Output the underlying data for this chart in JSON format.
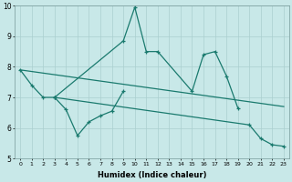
{
  "color": "#1a7a6e",
  "bg_color": "#c8e8e8",
  "grid_color": "#aacfcf",
  "xlabel": "Humidex (Indice chaleur)",
  "ylim": [
    5,
    10
  ],
  "xlim": [
    -0.5,
    23.5
  ],
  "line_upper": {
    "x": [
      0,
      1,
      2,
      3,
      9,
      10,
      11,
      12,
      15,
      16,
      17,
      18,
      19
    ],
    "y": [
      7.9,
      7.4,
      7.0,
      7.0,
      8.85,
      9.95,
      8.5,
      8.5,
      7.2,
      8.4,
      8.5,
      7.7,
      6.65
    ]
  },
  "line_lower_zigzag": {
    "x": [
      3,
      4,
      5,
      6,
      7,
      8,
      9
    ],
    "y": [
      7.0,
      6.6,
      5.75,
      6.2,
      6.4,
      6.55,
      7.2
    ]
  },
  "line_top_diag": {
    "x": [
      0,
      23
    ],
    "y": [
      7.9,
      6.7
    ]
  },
  "line_bot_diag": {
    "x": [
      3,
      20,
      21,
      22,
      23
    ],
    "y": [
      7.0,
      6.1,
      5.65,
      5.45,
      5.4
    ]
  },
  "yticks": [
    5,
    6,
    7,
    8,
    9,
    10
  ],
  "xticks": [
    0,
    1,
    2,
    3,
    4,
    5,
    6,
    7,
    8,
    9,
    10,
    11,
    12,
    13,
    14,
    15,
    16,
    17,
    18,
    19,
    20,
    21,
    22,
    23
  ]
}
